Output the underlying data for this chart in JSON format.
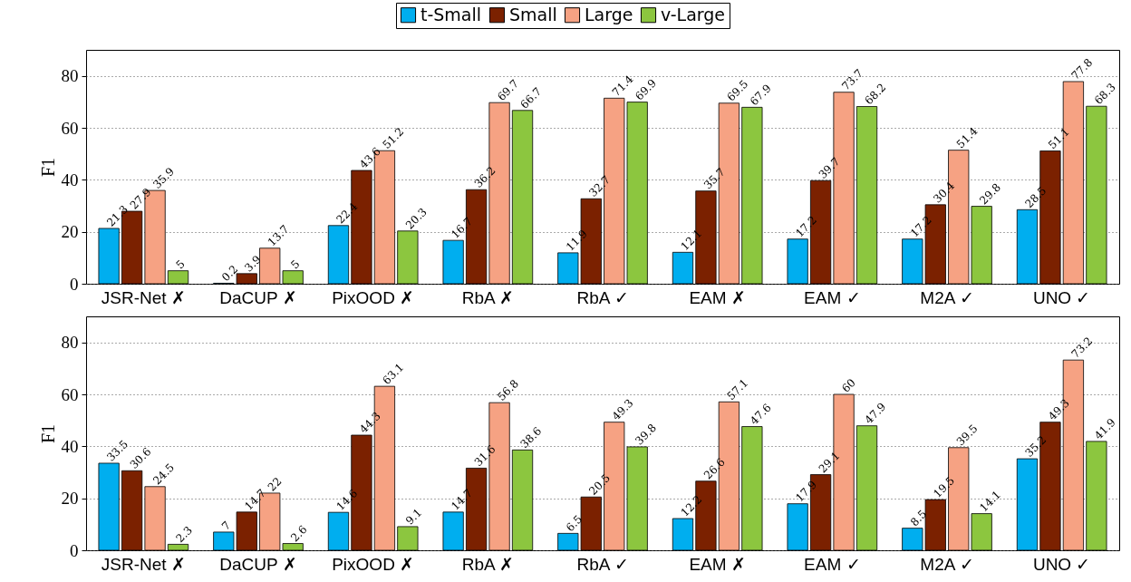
{
  "chart_data": [
    {
      "type": "bar",
      "ylabel": "F1",
      "categories": [
        "JSR-Net ✗",
        "DaCUP ✗",
        "PixOOD ✗",
        "RbA ✗",
        "RbA ✓",
        "EAM ✗",
        "EAM ✓",
        "M2A ✓",
        "UNO ✓"
      ],
      "series": [
        {
          "name": "t-Small",
          "color": "#00aeef",
          "values": [
            21.3,
            0.2,
            22.4,
            16.7,
            11.9,
            12.1,
            17.2,
            17.2,
            28.5
          ]
        },
        {
          "name": "Small",
          "color": "#7b2100",
          "values": [
            27.9,
            3.9,
            43.6,
            36.2,
            32.7,
            35.7,
            39.7,
            30.4,
            51.1
          ]
        },
        {
          "name": "Large",
          "color": "#f6a283",
          "values": [
            35.9,
            13.7,
            51.2,
            69.7,
            71.4,
            69.5,
            73.7,
            51.4,
            77.8
          ]
        },
        {
          "name": "v-Large",
          "color": "#8cc63f",
          "values": [
            5,
            5,
            20.3,
            66.7,
            69.9,
            67.9,
            68.2,
            29.8,
            68.3
          ]
        }
      ],
      "ylim": [
        0,
        90
      ],
      "yticks": [
        0,
        20,
        40,
        60,
        80
      ],
      "grid": "y",
      "legend": "top",
      "data_labels": true
    },
    {
      "type": "bar",
      "ylabel": "F1",
      "categories": [
        "JSR-Net ✗",
        "DaCUP ✗",
        "PixOOD ✗",
        "RbA ✗",
        "RbA ✓",
        "EAM ✗",
        "EAM ✓",
        "M2A ✓",
        "UNO ✓"
      ],
      "series": [
        {
          "color": "#00aeef",
          "values": [
            33.5,
            7,
            14.6,
            14.7,
            6.5,
            12.2,
            17.9,
            8.5,
            35.2
          ]
        },
        {
          "color": "#7b2100",
          "values": [
            30.6,
            14.7,
            44.3,
            31.6,
            20.5,
            26.6,
            29.1,
            19.5,
            49.3
          ]
        },
        {
          "color": "#f6a283",
          "values": [
            24.5,
            22,
            63.1,
            56.8,
            49.3,
            57.1,
            60,
            39.5,
            73.2
          ]
        },
        {
          "color": "#8cc63f",
          "values": [
            2.3,
            2.6,
            9.1,
            38.6,
            39.8,
            47.6,
            47.9,
            14.1,
            41.9
          ]
        }
      ],
      "ylim": [
        0,
        90
      ],
      "yticks": [
        0,
        20,
        40,
        60,
        80
      ],
      "grid": "y",
      "legend": false,
      "data_labels": true
    }
  ]
}
